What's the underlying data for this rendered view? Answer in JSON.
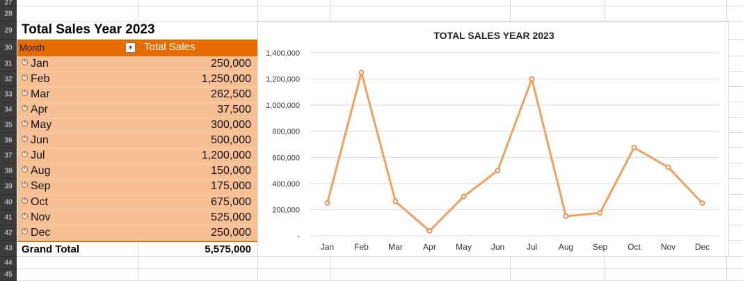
{
  "rows": [
    "27",
    "28",
    "29",
    "30",
    "31",
    "32",
    "33",
    "34",
    "35",
    "36",
    "37",
    "38",
    "39",
    "40",
    "41",
    "42",
    "43",
    "44",
    "45"
  ],
  "pivot": {
    "title": "Total Sales Year 2023",
    "header_month": "Month",
    "header_total": "Total Sales",
    "filter_icon": "filter-dropdown-icon",
    "expand_glyph": "+",
    "items": [
      {
        "month": "Jan",
        "value": "250,000"
      },
      {
        "month": "Feb",
        "value": "1,250,000"
      },
      {
        "month": "Mar",
        "value": "262,500"
      },
      {
        "month": "Apr",
        "value": "37,500"
      },
      {
        "month": "May",
        "value": "300,000"
      },
      {
        "month": "Jun",
        "value": "500,000"
      },
      {
        "month": "Jul",
        "value": "1,200,000"
      },
      {
        "month": "Aug",
        "value": "150,000"
      },
      {
        "month": "Sep",
        "value": "175,000"
      },
      {
        "month": "Oct",
        "value": "675,000"
      },
      {
        "month": "Nov",
        "value": "525,000"
      },
      {
        "month": "Dec",
        "value": "250,000"
      }
    ],
    "grand_total_label": "Grand Total",
    "grand_total_value": "5,575,000"
  },
  "chart_data": {
    "type": "line",
    "title": "TOTAL SALES YEAR 2023",
    "categories": [
      "Jan",
      "Feb",
      "Mar",
      "Apr",
      "May",
      "Jun",
      "Jul",
      "Aug",
      "Sep",
      "Oct",
      "Nov",
      "Dec"
    ],
    "values": [
      250000,
      1250000,
      262500,
      37500,
      300000,
      500000,
      1200000,
      150000,
      175000,
      675000,
      525000,
      250000
    ],
    "ylim": [
      0,
      1400000
    ],
    "yticks": [
      0,
      200000,
      400000,
      600000,
      800000,
      1000000,
      1200000,
      1400000
    ],
    "ytick_labels": [
      "-",
      "200,000",
      "400,000",
      "600,000",
      "800,000",
      "1,000,000",
      "1,200,000",
      "1,400,000"
    ],
    "grid": true,
    "legend": "none",
    "line_color": "#f0a060",
    "marker_color": "#ed7d31"
  },
  "colors": {
    "header_orange": "#e66c00",
    "row_fill": "#f7bf94",
    "row_header_bg": "#3b3b3b"
  }
}
